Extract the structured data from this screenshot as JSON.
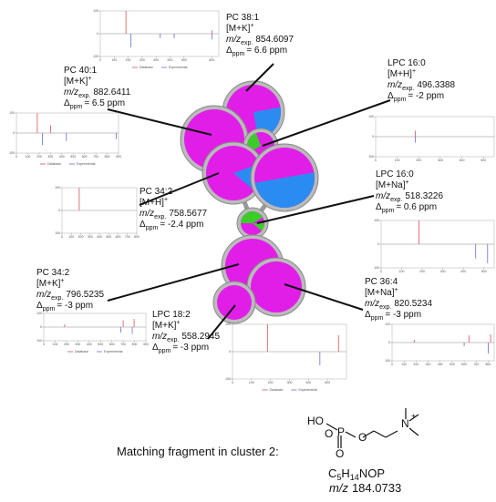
{
  "parts": {
    "mz": "m/z",
    "exp": "exp.",
    "delta": "Δ",
    "ppm": "ppm"
  },
  "annotations": [
    {
      "name": "PC 38:1",
      "adduct": "[M+K]",
      "charge": "+",
      "mz": "854.6097",
      "shift": "= 6.6 ppm"
    },
    {
      "name": "PC 40:1",
      "adduct": "[M+K]",
      "charge": "+",
      "mz": "882.6411",
      "shift": "= 6.5 ppm"
    },
    {
      "name": "LPC 16:0",
      "adduct": "[M+H]",
      "charge": "+",
      "mz": "496.3388",
      "shift": "= -2 ppm"
    },
    {
      "name": "PC 34:2",
      "adduct": "[M+H]",
      "charge": "+",
      "mz": "758.5677",
      "shift": "= -2.4 ppm"
    },
    {
      "name": "LPC 16:0",
      "adduct": "[M+Na]",
      "charge": "+",
      "mz": "518.3226",
      "shift": "= 0.6 ppm"
    },
    {
      "name": "PC 34:2",
      "adduct": "[M+K]",
      "charge": "+",
      "mz": "796.5235",
      "shift": "= -3 ppm"
    },
    {
      "name": "PC 36:4",
      "adduct": "[M+Na]",
      "charge": "+",
      "mz": "820.5234",
      "shift": "= -3 ppm"
    },
    {
      "name": "LPC 18:2",
      "adduct": "[M+K]",
      "charge": "+",
      "mz": "558.2945",
      "shift": "= -3 ppm"
    }
  ],
  "legend": {
    "database": "Database",
    "experimental": "Experimental"
  },
  "plots": [
    {
      "xlim": [
        0,
        850
      ],
      "xticks": [
        0,
        100,
        200,
        300,
        400,
        500,
        600,
        800
      ],
      "ylim": [
        -100,
        100
      ],
      "yticks": [
        {
          "value": 100,
          "label": "100"
        },
        0,
        {
          "value": -100,
          "label": "100"
        }
      ],
      "legend": true,
      "database": [
        [
          184,
          100
        ],
        [
          800,
          15
        ]
      ],
      "experimental": [
        [
          220,
          60
        ],
        [
          430,
          20
        ],
        [
          530,
          20
        ],
        [
          800,
          25
        ]
      ]
    },
    {
      "xlim": [
        0,
        900
      ],
      "xticks": [
        0,
        100,
        200,
        300,
        400,
        500,
        600,
        700,
        800,
        900
      ],
      "ylim": [
        -100,
        100
      ],
      "yticks": [
        {
          "value": 100,
          "label": "100"
        },
        0,
        {
          "value": -100,
          "label": "100"
        }
      ],
      "legend": true,
      "database": [
        [
          184,
          100
        ],
        [
          300,
          40
        ]
      ],
      "experimental": [
        [
          230,
          60
        ],
        [
          440,
          40
        ],
        [
          880,
          30
        ]
      ]
    },
    {
      "xlim": [
        0,
        550
      ],
      "xticks": [
        0,
        100,
        200,
        300,
        400,
        500
      ],
      "ylim": [
        -100,
        100
      ],
      "yticks": [
        {
          "value": 100,
          "label": "100"
        },
        0,
        {
          "value": -100,
          "label": "100"
        }
      ],
      "legend": false,
      "database": [
        [
          184,
          30
        ]
      ],
      "experimental": [
        [
          184,
          30
        ]
      ]
    },
    {
      "xlim": [
        0,
        800
      ],
      "xticks": [
        0,
        100,
        200,
        300,
        400,
        500,
        600,
        700,
        800
      ],
      "ylim": [
        -100,
        100
      ],
      "yticks": [
        {
          "value": 100,
          "label": "100"
        },
        0,
        {
          "value": -100,
          "label": "100"
        }
      ],
      "legend": false,
      "database": [
        [
          184,
          100
        ]
      ],
      "experimental": []
    },
    {
      "xlim": [
        0,
        550
      ],
      "xticks": [
        0,
        100,
        200,
        300,
        400,
        500
      ],
      "ylim": [
        -100,
        100
      ],
      "yticks": [
        {
          "value": 100,
          "label": "100"
        },
        0,
        {
          "value": -100,
          "label": "100"
        }
      ],
      "legend": false,
      "database": [
        [
          184,
          100
        ]
      ],
      "experimental": [
        [
          460,
          60
        ],
        [
          518,
          80
        ]
      ]
    },
    {
      "xlim": [
        0,
        900
      ],
      "xticks": [
        0,
        100,
        200,
        300,
        400,
        500,
        600,
        700,
        800,
        900
      ],
      "ylim": [
        -100,
        100
      ],
      "yticks": [
        {
          "value": 100,
          "label": "100"
        },
        0,
        {
          "value": -100,
          "label": "100"
        }
      ],
      "legend": true,
      "database": [
        [
          184,
          20
        ],
        [
          700,
          50
        ],
        [
          796,
          60
        ]
      ],
      "experimental": [
        [
          680,
          40
        ],
        [
          780,
          50
        ]
      ]
    },
    {
      "xlim": [
        0,
        600
      ],
      "xticks": [
        0,
        100,
        200,
        300,
        400,
        500
      ],
      "ylim": [
        -100,
        100
      ],
      "yticks": [
        {
          "value": 100,
          "label": "100"
        },
        0,
        {
          "value": -100,
          "label": "100"
        }
      ],
      "legend": true,
      "database": [
        [
          184,
          100
        ],
        [
          558,
          60
        ]
      ],
      "experimental": [
        [
          460,
          50
        ]
      ]
    },
    {
      "xlim": [
        0,
        850
      ],
      "xticks": [
        0,
        100,
        200,
        300,
        400,
        500,
        600,
        700,
        800
      ],
      "ylim": [
        -100,
        100
      ],
      "yticks": [
        {
          "value": 100,
          "label": "100"
        },
        0,
        {
          "value": -100,
          "label": "100"
        }
      ],
      "legend": false,
      "database": [
        [
          184,
          15
        ],
        [
          640,
          40
        ],
        [
          820,
          45
        ]
      ],
      "experimental": [
        [
          600,
          20
        ],
        [
          800,
          60
        ]
      ]
    }
  ],
  "fragment": {
    "caption": "Matching fragment in cluster 2:",
    "structure": [
      "HO",
      "P",
      "O",
      "O",
      "O",
      "N",
      "+"
    ],
    "formula": [
      "C",
      "5",
      "H",
      "14",
      "NOP"
    ],
    "mz_label": "m/z",
    "mz_value": "184.0733"
  }
}
